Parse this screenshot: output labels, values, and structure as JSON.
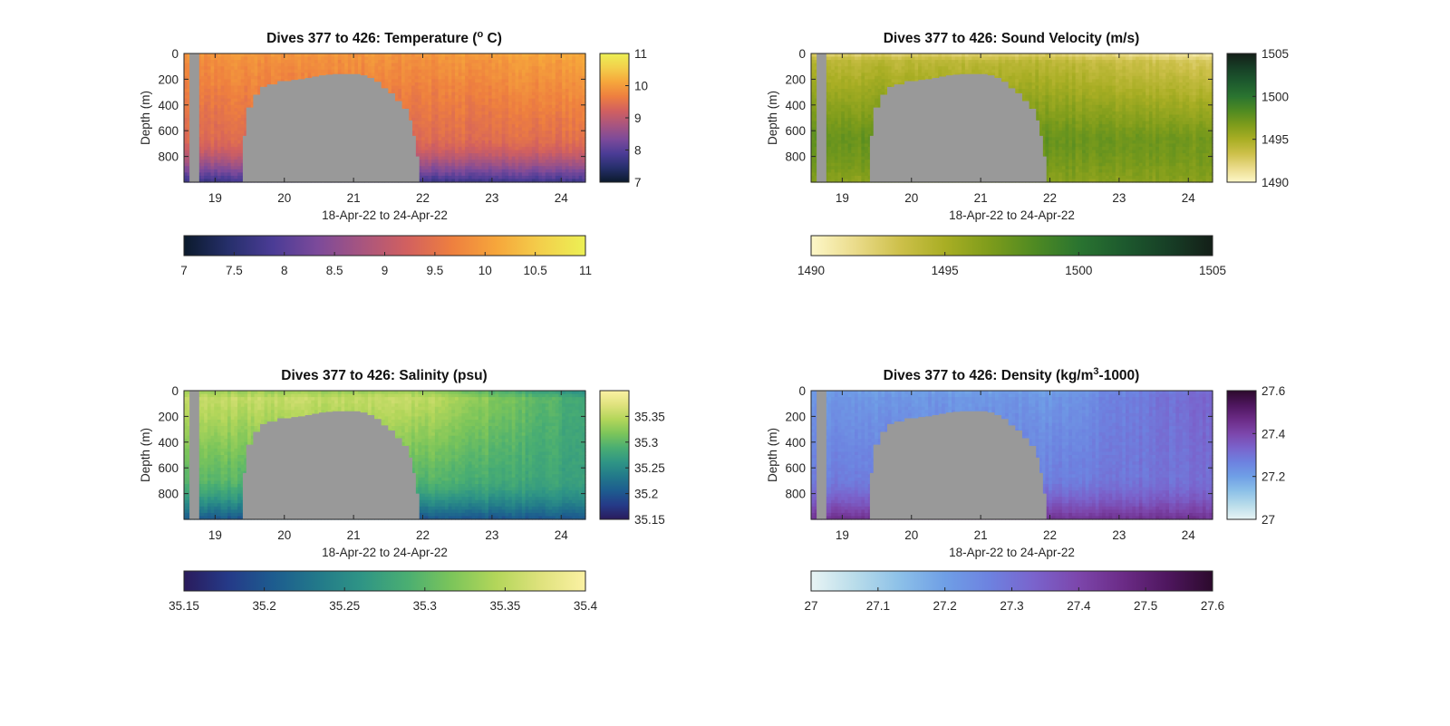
{
  "figure": {
    "background": "#ffffff",
    "mask_color": "#999999"
  },
  "chart_data": [
    {
      "type": "heatmap",
      "title_main": "Dives 377 to 426: Temperature (",
      "title_sup": "o",
      "title_end": " C)",
      "xlabel": "18-Apr-22 to 24-Apr-22",
      "ylabel": "Depth (m)",
      "xlim": [
        18.55,
        24.35
      ],
      "ylim": [
        1000,
        0
      ],
      "xticks": [
        "19",
        "20",
        "21",
        "22",
        "23",
        "24"
      ],
      "yticks": [
        "0",
        "200",
        "400",
        "600",
        "800"
      ],
      "ytick_values": [
        0,
        200,
        400,
        600,
        800
      ],
      "xtick_values": [
        19,
        20,
        21,
        22,
        23,
        24
      ],
      "colormap": [
        "#0b1a2c",
        "#262f6b",
        "#4b3c96",
        "#7c4a9a",
        "#a8557f",
        "#d2605f",
        "#ee7f3f",
        "#f6a63b",
        "#f3cf4b",
        "#ecf055"
      ],
      "clim": [
        7,
        11
      ],
      "side_colorbar_ticks": [
        "7",
        "8",
        "9",
        "10",
        "11"
      ],
      "side_colorbar_values": [
        7,
        8,
        9,
        10,
        11
      ],
      "bottom_colorbar_ticks": [
        "7",
        "7.5",
        "8",
        "8.5",
        "9",
        "9.5",
        "10",
        "10.5",
        "11"
      ],
      "bottom_colorbar_values": [
        7,
        7.5,
        8,
        8.5,
        9,
        9.5,
        10,
        10.5,
        11
      ],
      "profile": {
        "surface": 9.95,
        "thermo": 9.85,
        "deep": 9.4,
        "bottom": 7.7,
        "east_warm": 0.05
      },
      "nan_region": {
        "x": [
          19.35,
          19.4,
          19.45,
          19.55,
          19.65,
          19.75,
          19.9,
          20.0,
          20.1,
          20.2,
          20.3,
          20.4,
          20.5,
          20.6,
          20.7,
          20.8,
          20.9,
          21.0,
          21.1,
          21.2,
          21.3,
          21.4,
          21.5,
          21.6,
          21.7,
          21.8,
          21.85,
          21.9,
          21.95
        ],
        "top": [
          1000,
          640,
          420,
          320,
          260,
          240,
          215,
          215,
          205,
          200,
          190,
          180,
          170,
          165,
          160,
          160,
          160,
          160,
          170,
          190,
          220,
          270,
          310,
          370,
          430,
          520,
          640,
          800,
          1000
        ]
      }
    },
    {
      "type": "heatmap",
      "title_main": "Dives 377 to 426: Sound Velocity (m/s)",
      "title_sup": "",
      "title_end": "",
      "xlabel": "18-Apr-22 to 24-Apr-22",
      "ylabel": "Depth (m)",
      "xlim": [
        18.55,
        24.35
      ],
      "ylim": [
        1000,
        0
      ],
      "xticks": [
        "19",
        "20",
        "21",
        "22",
        "23",
        "24"
      ],
      "yticks": [
        "0",
        "200",
        "400",
        "600",
        "800"
      ],
      "ytick_values": [
        0,
        200,
        400,
        600,
        800
      ],
      "xtick_values": [
        19,
        20,
        21,
        22,
        23,
        24
      ],
      "colormap": [
        "#fdf7c8",
        "#eadb8a",
        "#cdc04a",
        "#a9ae24",
        "#7e9c1b",
        "#4f8a22",
        "#2a7430",
        "#1d5a2e",
        "#173f26",
        "#141f18"
      ],
      "clim": [
        1490,
        1505
      ],
      "side_colorbar_ticks": [
        "1490",
        "1495",
        "1500",
        "1505"
      ],
      "side_colorbar_values": [
        1490,
        1495,
        1500,
        1505
      ],
      "bottom_colorbar_ticks": [
        "1490",
        "1495",
        "1500",
        "1505"
      ],
      "bottom_colorbar_values": [
        1490,
        1495,
        1500,
        1505
      ],
      "profile": {
        "surface": 1492.3,
        "thermo": 1494.2,
        "deep": 1497.5,
        "bottom": 1496.2,
        "east_warm": -0.4
      },
      "nan_region": {
        "x": [
          19.35,
          19.4,
          19.45,
          19.55,
          19.65,
          19.75,
          19.9,
          20.0,
          20.1,
          20.2,
          20.3,
          20.4,
          20.5,
          20.6,
          20.7,
          20.8,
          20.9,
          21.0,
          21.1,
          21.2,
          21.3,
          21.4,
          21.5,
          21.6,
          21.7,
          21.8,
          21.85,
          21.9,
          21.95
        ],
        "top": [
          1000,
          640,
          420,
          320,
          260,
          240,
          215,
          215,
          205,
          200,
          190,
          180,
          170,
          165,
          160,
          160,
          160,
          160,
          170,
          190,
          220,
          270,
          310,
          370,
          430,
          520,
          640,
          800,
          1000
        ]
      }
    },
    {
      "type": "heatmap",
      "title_main": "Dives 377 to 426: Salinity (psu)",
      "title_sup": "",
      "title_end": "",
      "xlabel": "18-Apr-22 to 24-Apr-22",
      "ylabel": "Depth (m)",
      "xlim": [
        18.55,
        24.35
      ],
      "ylim": [
        1000,
        0
      ],
      "xticks": [
        "19",
        "20",
        "21",
        "22",
        "23",
        "24"
      ],
      "yticks": [
        "0",
        "200",
        "400",
        "600",
        "800"
      ],
      "ytick_values": [
        0,
        200,
        400,
        600,
        800
      ],
      "xtick_values": [
        19,
        20,
        21,
        22,
        23,
        24
      ],
      "colormap": [
        "#2a1b5c",
        "#253a88",
        "#1d5c8f",
        "#22798a",
        "#2f9585",
        "#4aae72",
        "#7cc55a",
        "#b3d65a",
        "#dfe27d",
        "#fbf1a3"
      ],
      "clim": [
        35.15,
        35.4
      ],
      "side_colorbar_ticks": [
        "35.15",
        "35.2",
        "35.25",
        "35.3",
        "35.35"
      ],
      "side_colorbar_values": [
        35.15,
        35.2,
        35.25,
        35.3,
        35.35
      ],
      "bottom_colorbar_ticks": [
        "35.15",
        "35.2",
        "35.25",
        "35.3",
        "35.35",
        "35.4"
      ],
      "bottom_colorbar_values": [
        35.15,
        35.2,
        35.25,
        35.3,
        35.35,
        35.4
      ],
      "profile": {
        "surface": 35.33,
        "thermo": 35.355,
        "deep": 35.3,
        "bottom": 35.2,
        "east_warm": -0.02
      },
      "nan_region": {
        "x": [
          19.35,
          19.4,
          19.45,
          19.55,
          19.65,
          19.75,
          19.9,
          20.0,
          20.1,
          20.2,
          20.3,
          20.4,
          20.5,
          20.6,
          20.7,
          20.8,
          20.9,
          21.0,
          21.1,
          21.2,
          21.3,
          21.4,
          21.5,
          21.6,
          21.7,
          21.8,
          21.85,
          21.9,
          21.95
        ],
        "top": [
          1000,
          640,
          420,
          320,
          260,
          240,
          215,
          215,
          205,
          200,
          190,
          180,
          170,
          165,
          160,
          160,
          160,
          160,
          170,
          190,
          220,
          270,
          310,
          370,
          430,
          520,
          640,
          800,
          1000
        ]
      }
    },
    {
      "type": "heatmap",
      "title_main": "Dives 377 to 426: Density (kg/m",
      "title_sup": "3",
      "title_end": "-1000)",
      "xlabel": "18-Apr-22 to 24-Apr-22",
      "ylabel": "Depth (m)",
      "xlim": [
        18.55,
        24.35
      ],
      "ylim": [
        1000,
        0
      ],
      "xticks": [
        "19",
        "20",
        "21",
        "22",
        "23",
        "24"
      ],
      "yticks": [
        "0",
        "200",
        "400",
        "600",
        "800"
      ],
      "ytick_values": [
        0,
        200,
        400,
        600,
        800
      ],
      "xtick_values": [
        19,
        20,
        21,
        22,
        23,
        24
      ],
      "colormap": [
        "#e8f4f4",
        "#b8dcea",
        "#8cc0e8",
        "#6f9fe6",
        "#6d82e0",
        "#7a63cc",
        "#7c46ab",
        "#6b2b86",
        "#4e165e",
        "#2c0a2c"
      ],
      "clim": [
        27,
        27.6
      ],
      "side_colorbar_ticks": [
        "27",
        "27.2",
        "27.4",
        "27.6"
      ],
      "side_colorbar_values": [
        27,
        27.2,
        27.4,
        27.6
      ],
      "bottom_colorbar_ticks": [
        "27",
        "27.1",
        "27.2",
        "27.3",
        "27.4",
        "27.5",
        "27.6"
      ],
      "bottom_colorbar_values": [
        27,
        27.1,
        27.2,
        27.3,
        27.4,
        27.5,
        27.6
      ],
      "profile": {
        "surface": 27.2,
        "thermo": 27.22,
        "deep": 27.27,
        "bottom": 27.45,
        "east_warm": 0.03
      },
      "nan_region": {
        "x": [
          19.35,
          19.4,
          19.45,
          19.55,
          19.65,
          19.75,
          19.9,
          20.0,
          20.1,
          20.2,
          20.3,
          20.4,
          20.5,
          20.6,
          20.7,
          20.8,
          20.9,
          21.0,
          21.1,
          21.2,
          21.3,
          21.4,
          21.5,
          21.6,
          21.7,
          21.8,
          21.85,
          21.9,
          21.95
        ],
        "top": [
          1000,
          640,
          420,
          320,
          260,
          240,
          215,
          215,
          205,
          200,
          190,
          180,
          170,
          165,
          160,
          160,
          160,
          160,
          170,
          190,
          220,
          270,
          310,
          370,
          430,
          520,
          640,
          800,
          1000
        ]
      }
    }
  ]
}
